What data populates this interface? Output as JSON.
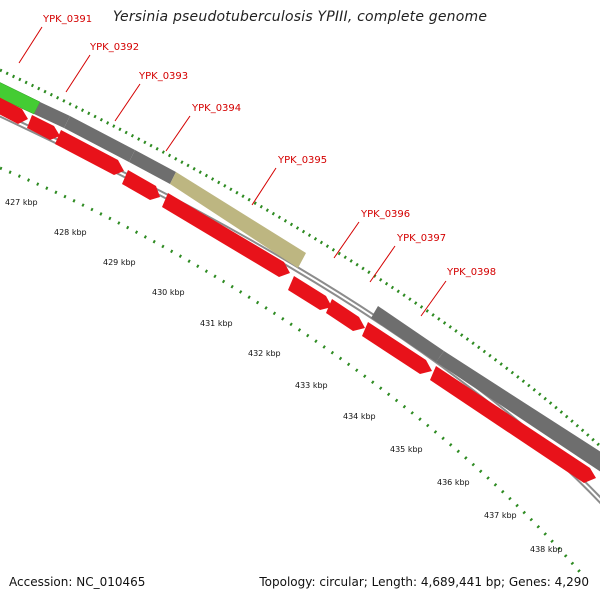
{
  "title": "Yersinia pseudotuberculosis YPIII, complete genome",
  "footer": {
    "accession": "Accession: NC_010465",
    "summary": "Topology: circular; Length: 4,689,441 bp; Genes: 4,290"
  },
  "colors": {
    "forward_cds": "#e8121a",
    "reverse_cds": "#6e6e6e",
    "highlight_cds_green": "#44cc33",
    "highlight_cds_olive": "#bdb681",
    "label": "#d40000",
    "tick": "#2e8b22",
    "backbone": "#8c8c8c"
  },
  "genes": [
    {
      "label": "YPK_0391"
    },
    {
      "label": "YPK_0392"
    },
    {
      "label": "YPK_0393"
    },
    {
      "label": "YPK_0394"
    },
    {
      "label": "YPK_0395"
    },
    {
      "label": "YPK_0396"
    },
    {
      "label": "YPK_0397"
    },
    {
      "label": "YPK_0398"
    }
  ],
  "scale": {
    "unit": "kbp",
    "labels": [
      "427 kbp",
      "428 kbp",
      "429 kbp",
      "430 kbp",
      "431 kbp",
      "432 kbp",
      "433 kbp",
      "434 kbp",
      "435 kbp",
      "436 kbp",
      "437 kbp",
      "438 kbp"
    ]
  }
}
